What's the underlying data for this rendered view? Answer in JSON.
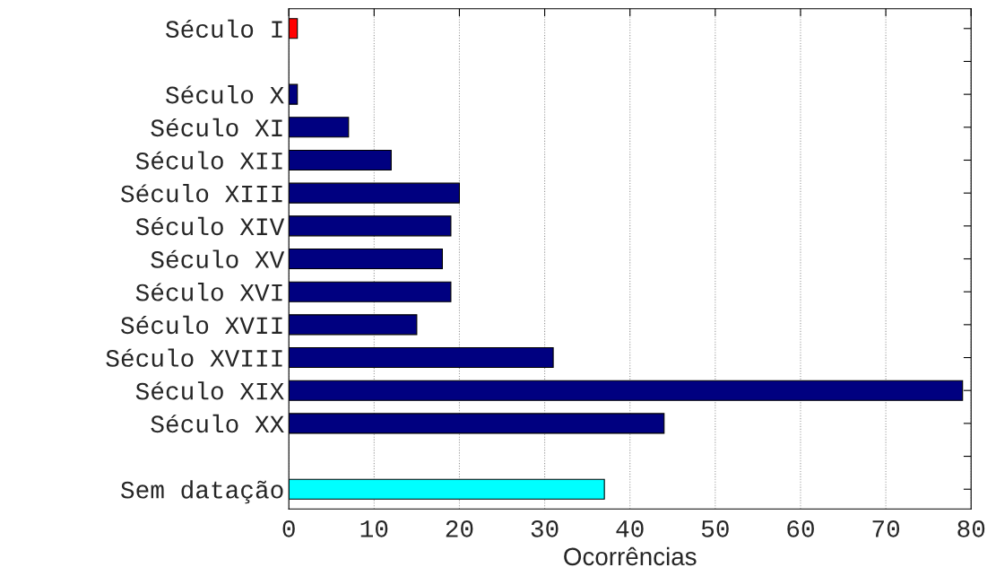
{
  "chart_data": {
    "type": "bar",
    "orientation": "horizontal",
    "xlabel": "Ocorrências",
    "categories": [
      "Século I",
      null,
      "Século X",
      "Século XI",
      "Século XII",
      "Século XIII",
      "Século XIV",
      "Século XV",
      "Século XVI",
      "Século XVII",
      "Século XVIII",
      "Século XIX",
      "Século XX",
      null,
      "Sem datação"
    ],
    "values": [
      1,
      null,
      1,
      7,
      12,
      20,
      19,
      18,
      19,
      15,
      31,
      79,
      44,
      null,
      37
    ],
    "colors": [
      "#ff0000",
      null,
      "#000080",
      "#000080",
      "#000080",
      "#000080",
      "#000080",
      "#000080",
      "#000080",
      "#000080",
      "#000080",
      "#000080",
      "#000080",
      null,
      "#00ffff"
    ],
    "xlim": [
      0,
      80
    ],
    "xticks": [
      0,
      10,
      20,
      30,
      40,
      50,
      60,
      70,
      80
    ],
    "grid": "x"
  }
}
